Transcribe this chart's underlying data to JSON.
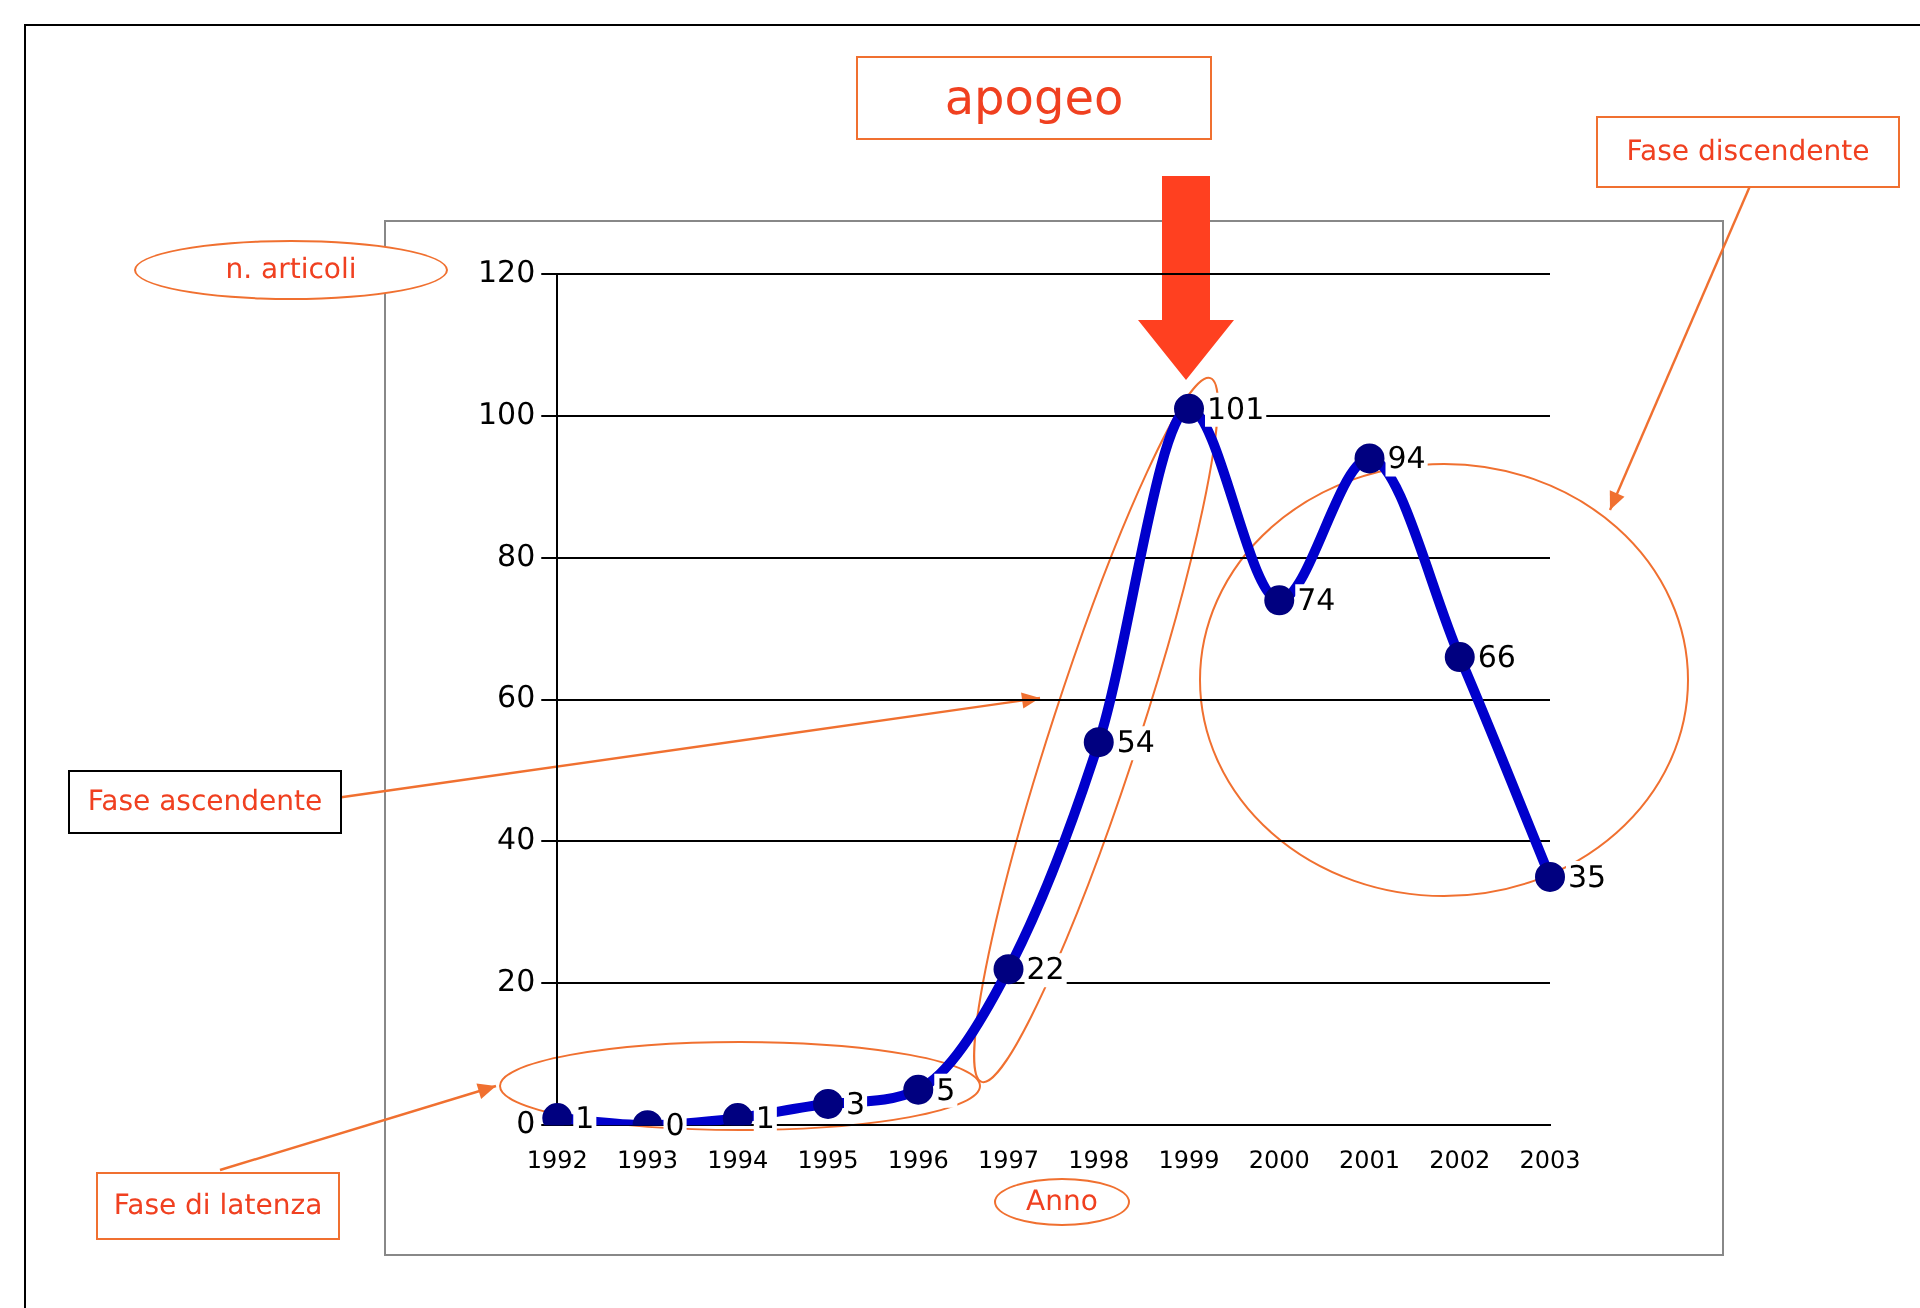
{
  "chart_data": {
    "type": "line",
    "xlabel": "Anno",
    "ylabel": "n. articoli",
    "categories": [
      "1992",
      "1993",
      "1994",
      "1995",
      "1996",
      "1997",
      "1998",
      "1999",
      "2000",
      "2001",
      "2002",
      "2003"
    ],
    "series": [
      {
        "color": "#0000cc",
        "values": [
          1,
          0,
          1,
          3,
          5,
          22,
          54,
          101,
          74,
          94,
          66,
          35
        ]
      }
    ],
    "ylim": [
      0,
      120
    ],
    "yticks": [
      0,
      20,
      40,
      60,
      80,
      100,
      120
    ],
    "grid": "y",
    "legend": false,
    "marker": "circle",
    "line_style": "solid",
    "data_labels": true,
    "annotations": [
      "apogeo",
      "Fase discendente",
      "Fase ascendente",
      "Fase di latenza"
    ]
  }
}
